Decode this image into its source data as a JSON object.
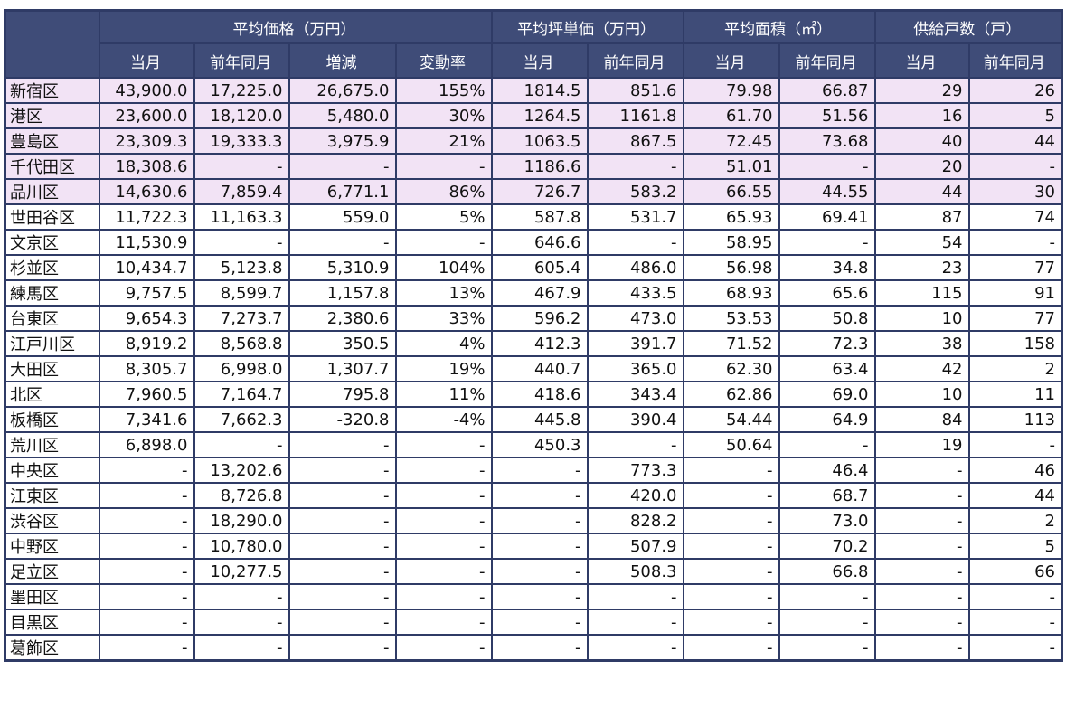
{
  "header": {
    "groups": [
      {
        "label": "平均価格（万円）",
        "span": 4
      },
      {
        "label": "平均坪単価（万円）",
        "span": 2
      },
      {
        "label": "平均面積（㎡）",
        "span": 2
      },
      {
        "label": "供給戸数（戸）",
        "span": 2
      }
    ],
    "subheaders": [
      "当月",
      "前年同月",
      "増減",
      "変動率",
      "当月",
      "前年同月",
      "当月",
      "前年同月",
      "当月",
      "前年同月"
    ]
  },
  "rows": [
    {
      "ward": "新宿区",
      "highlight": true,
      "cells": [
        "43,900.0",
        "17,225.0",
        "26,675.0",
        "155%",
        "1814.5",
        "851.6",
        "79.98",
        "66.87",
        "29",
        "26"
      ]
    },
    {
      "ward": "港区",
      "highlight": true,
      "cells": [
        "23,600.0",
        "18,120.0",
        "5,480.0",
        "30%",
        "1264.5",
        "1161.8",
        "61.70",
        "51.56",
        "16",
        "5"
      ]
    },
    {
      "ward": "豊島区",
      "highlight": true,
      "cells": [
        "23,309.3",
        "19,333.3",
        "3,975.9",
        "21%",
        "1063.5",
        "867.5",
        "72.45",
        "73.68",
        "40",
        "44"
      ]
    },
    {
      "ward": "千代田区",
      "highlight": true,
      "cells": [
        "18,308.6",
        "-",
        "-",
        "-",
        "1186.6",
        "-",
        "51.01",
        "-",
        "20",
        "-"
      ]
    },
    {
      "ward": "品川区",
      "highlight": true,
      "cells": [
        "14,630.6",
        "7,859.4",
        "6,771.1",
        "86%",
        "726.7",
        "583.2",
        "66.55",
        "44.55",
        "44",
        "30"
      ]
    },
    {
      "ward": "世田谷区",
      "highlight": false,
      "cells": [
        "11,722.3",
        "11,163.3",
        "559.0",
        "5%",
        "587.8",
        "531.7",
        "65.93",
        "69.41",
        "87",
        "74"
      ]
    },
    {
      "ward": "文京区",
      "highlight": false,
      "cells": [
        "11,530.9",
        "-",
        "-",
        "-",
        "646.6",
        "-",
        "58.95",
        "-",
        "54",
        "-"
      ]
    },
    {
      "ward": "杉並区",
      "highlight": false,
      "cells": [
        "10,434.7",
        "5,123.8",
        "5,310.9",
        "104%",
        "605.4",
        "486.0",
        "56.98",
        "34.8",
        "23",
        "77"
      ]
    },
    {
      "ward": "練馬区",
      "highlight": false,
      "cells": [
        "9,757.5",
        "8,599.7",
        "1,157.8",
        "13%",
        "467.9",
        "433.5",
        "68.93",
        "65.6",
        "115",
        "91"
      ]
    },
    {
      "ward": "台東区",
      "highlight": false,
      "cells": [
        "9,654.3",
        "7,273.7",
        "2,380.6",
        "33%",
        "596.2",
        "473.0",
        "53.53",
        "50.8",
        "10",
        "77"
      ]
    },
    {
      "ward": "江戸川区",
      "highlight": false,
      "cells": [
        "8,919.2",
        "8,568.8",
        "350.5",
        "4%",
        "412.3",
        "391.7",
        "71.52",
        "72.3",
        "38",
        "158"
      ]
    },
    {
      "ward": "大田区",
      "highlight": false,
      "cells": [
        "8,305.7",
        "6,998.0",
        "1,307.7",
        "19%",
        "440.7",
        "365.0",
        "62.30",
        "63.4",
        "42",
        "2"
      ]
    },
    {
      "ward": "北区",
      "highlight": false,
      "cells": [
        "7,960.5",
        "7,164.7",
        "795.8",
        "11%",
        "418.6",
        "343.4",
        "62.86",
        "69.0",
        "10",
        "11"
      ]
    },
    {
      "ward": "板橋区",
      "highlight": false,
      "cells": [
        "7,341.6",
        "7,662.3",
        "-320.8",
        "-4%",
        "445.8",
        "390.4",
        "54.44",
        "64.9",
        "84",
        "113"
      ]
    },
    {
      "ward": "荒川区",
      "highlight": false,
      "cells": [
        "6,898.0",
        "-",
        "-",
        "-",
        "450.3",
        "-",
        "50.64",
        "-",
        "19",
        "-"
      ]
    },
    {
      "ward": "中央区",
      "highlight": false,
      "cells": [
        "-",
        "13,202.6",
        "-",
        "-",
        "-",
        "773.3",
        "-",
        "46.4",
        "-",
        "46"
      ]
    },
    {
      "ward": "江東区",
      "highlight": false,
      "cells": [
        "-",
        "8,726.8",
        "-",
        "-",
        "-",
        "420.0",
        "-",
        "68.7",
        "-",
        "44"
      ]
    },
    {
      "ward": "渋谷区",
      "highlight": false,
      "cells": [
        "-",
        "18,290.0",
        "-",
        "-",
        "-",
        "828.2",
        "-",
        "73.0",
        "-",
        "2"
      ]
    },
    {
      "ward": "中野区",
      "highlight": false,
      "cells": [
        "-",
        "10,780.0",
        "-",
        "-",
        "-",
        "507.9",
        "-",
        "70.2",
        "-",
        "5"
      ]
    },
    {
      "ward": "足立区",
      "highlight": false,
      "cells": [
        "-",
        "10,277.5",
        "-",
        "-",
        "-",
        "508.3",
        "-",
        "66.8",
        "-",
        "66"
      ]
    },
    {
      "ward": "墨田区",
      "highlight": false,
      "cells": [
        "-",
        "-",
        "-",
        "-",
        "-",
        "-",
        "-",
        "-",
        "-",
        "-"
      ]
    },
    {
      "ward": "目黒区",
      "highlight": false,
      "cells": [
        "-",
        "-",
        "-",
        "-",
        "-",
        "-",
        "-",
        "-",
        "-",
        "-"
      ]
    },
    {
      "ward": "葛飾区",
      "highlight": false,
      "cells": [
        "-",
        "-",
        "-",
        "-",
        "-",
        "-",
        "-",
        "-",
        "-",
        "-"
      ]
    }
  ],
  "colors": {
    "header_bg": "#3f4c78",
    "border": "#2f3b66",
    "highlight_row": "#f2e3f5"
  }
}
